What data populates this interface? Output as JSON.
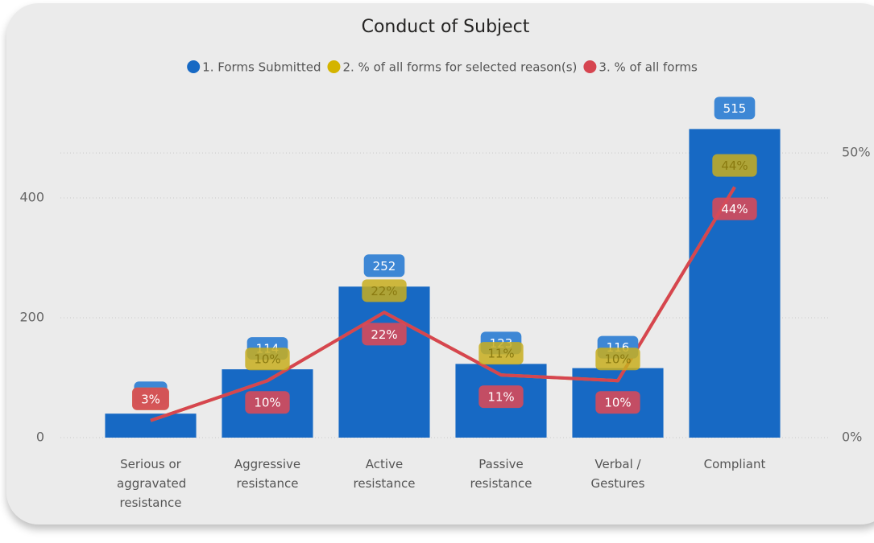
{
  "chart_data": {
    "type": "bar-line",
    "title": "Conduct of Subject",
    "categories": [
      "Serious or aggravated resistance",
      "Aggressive resistance",
      "Active resistance",
      "Passive resistance",
      "Verbal / Gestures",
      "Compliant"
    ],
    "series": [
      {
        "name": "1. Forms Submitted",
        "type": "bar",
        "color": "#1769c4",
        "label_color": "#3d87d5",
        "values": [
          40,
          114,
          252,
          123,
          116,
          515
        ]
      },
      {
        "name": "2. % of all forms for selected reason(s)",
        "type": "line",
        "axis": "y2",
        "color": "#d4b400",
        "label_color": "#c8ae1e",
        "values": [
          3,
          10,
          22,
          11,
          10,
          44
        ],
        "value_labels": [
          "3%",
          "10%",
          "22%",
          "11%",
          "10%",
          "44%"
        ]
      },
      {
        "name": "3. % of all forms",
        "type": "line",
        "axis": "y2",
        "color": "#d64550",
        "label_color": "#d64a5a",
        "values": [
          3,
          10,
          22,
          11,
          10,
          44
        ],
        "value_labels": [
          "3%",
          "10%",
          "22%",
          "11%",
          "10%",
          "44%"
        ]
      }
    ],
    "ylim": [
      0,
      570
    ],
    "yticks": [
      0,
      200,
      400
    ],
    "y2lim": [
      0,
      60
    ],
    "y2ticks": [
      {
        "value": 0,
        "label": "0%"
      },
      {
        "value": 50,
        "label": "50%"
      }
    ],
    "grid": true,
    "legend": "top"
  }
}
